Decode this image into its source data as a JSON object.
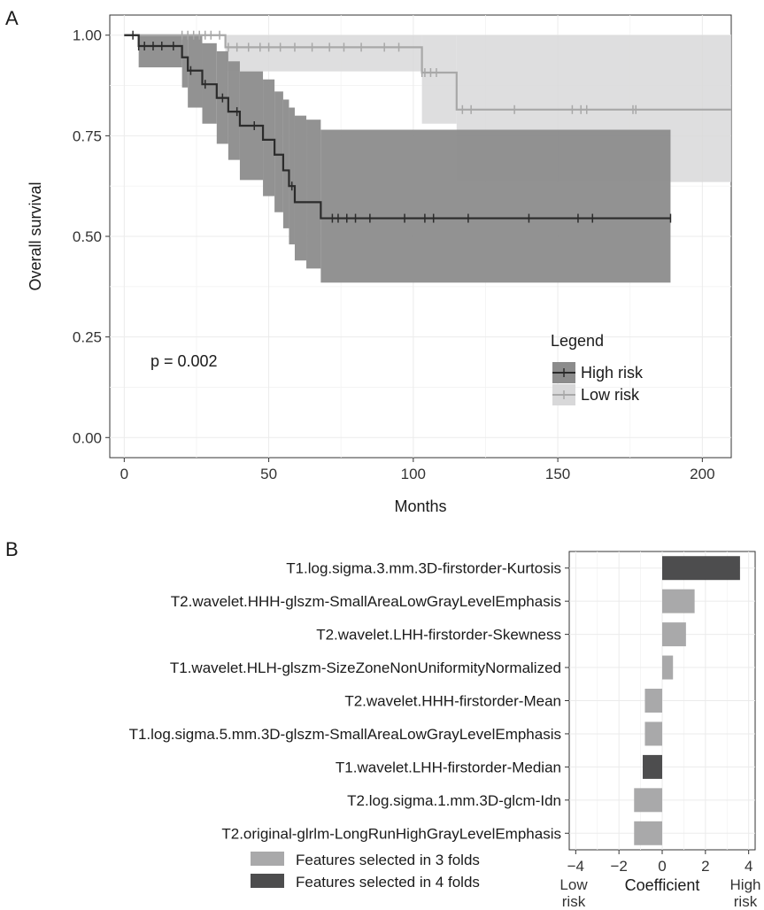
{
  "panels": [
    {
      "letter": "A"
    },
    {
      "letter": "B"
    }
  ],
  "colors": {
    "high_risk_line": "#2b2b2b",
    "high_risk_band": "#8c8c8c",
    "low_risk_line": "#a8a8a8",
    "low_risk_band": "#d8d8d9",
    "bar_3_folds": "#a9a9aa",
    "bar_4_folds": "#4d4d4e",
    "grid": "#ebebeb"
  },
  "chart_data": [
    {
      "type": "line",
      "subtype": "kaplan-meier step curve with confidence bands and censor marks",
      "xlabel": "Months",
      "ylabel": "Overall survival",
      "xlim": [
        -5,
        210
      ],
      "ylim": [
        -0.05,
        1.05
      ],
      "x_ticks": [
        0,
        50,
        100,
        150,
        200
      ],
      "y_ticks": [
        0.0,
        0.25,
        0.5,
        0.75,
        1.0
      ],
      "x_tick_labels": [
        "0",
        "50",
        "100",
        "150",
        "200"
      ],
      "y_tick_labels": [
        "0.00",
        "0.25",
        "0.50",
        "0.75",
        "1.00"
      ],
      "grid": true,
      "annotation": "p = 0.002",
      "legend": {
        "title": "Legend",
        "placement": "bottom-right",
        "entries": [
          "High risk",
          "Low risk"
        ]
      },
      "series": [
        {
          "name": "High risk",
          "step_times": [
            0,
            5,
            20,
            22,
            27,
            32,
            36,
            40,
            48,
            52,
            55,
            57,
            59,
            63,
            68,
            189
          ],
          "step_survival": [
            1.0,
            0.973,
            0.945,
            0.912,
            0.878,
            0.844,
            0.81,
            0.775,
            0.74,
            0.703,
            0.664,
            0.625,
            0.585,
            0.585,
            0.545,
            0.545
          ],
          "band_lower": [
            1.0,
            0.92,
            0.87,
            0.82,
            0.78,
            0.73,
            0.69,
            0.64,
            0.6,
            0.56,
            0.52,
            0.48,
            0.44,
            0.42,
            0.385,
            0.385
          ],
          "band_upper": [
            1.0,
            1.0,
            1.0,
            1.0,
            0.98,
            0.96,
            0.935,
            0.91,
            0.89,
            0.86,
            0.84,
            0.82,
            0.8,
            0.79,
            0.765,
            0.765
          ],
          "censor_times": [
            3,
            5,
            7,
            10,
            13,
            17,
            23,
            28,
            34,
            39,
            45,
            58,
            72,
            74,
            77,
            80,
            85,
            97,
            104,
            107,
            119,
            140,
            157,
            162,
            189
          ]
        },
        {
          "name": "Low risk",
          "step_times": [
            0,
            35,
            103,
            115,
            210
          ],
          "step_survival": [
            1.0,
            0.97,
            0.907,
            0.815,
            0.815
          ],
          "band_lower": [
            1.0,
            0.91,
            0.78,
            0.635,
            0.635
          ],
          "band_upper": [
            1.0,
            1.0,
            1.0,
            1.0,
            1.0
          ],
          "censor_times": [
            20,
            22,
            24,
            26,
            28,
            30,
            33,
            36,
            39,
            43,
            47,
            50,
            54,
            59,
            65,
            71,
            76,
            82,
            90,
            95,
            103,
            104,
            106,
            108,
            117,
            120,
            135,
            155,
            158,
            160,
            176,
            177
          ]
        }
      ]
    },
    {
      "type": "bar",
      "orientation": "horizontal",
      "xlabel": "Coefficient",
      "x_ticks": [
        -4,
        -2,
        0,
        2,
        4
      ],
      "x_tick_labels": [
        "−4",
        "−2",
        "0",
        "2",
        "4"
      ],
      "xlim": [
        -4.3,
        4.3
      ],
      "end_labels": {
        "low": [
          "Low",
          "risk"
        ],
        "high": [
          "High",
          "risk"
        ]
      },
      "grid": true,
      "legend": {
        "placement": "bottom-left",
        "entries": [
          "Features selected in 3 folds",
          "Features selected in 4 folds"
        ]
      },
      "categories": [
        "T1.log.sigma.3.mm.3D-firstorder-Kurtosis",
        "T2.wavelet.HHH-glszm-SmallAreaLowGrayLevelEmphasis",
        "T2.wavelet.LHH-firstorder-Skewness",
        "T1.wavelet.HLH-glszm-SizeZoneNonUniformityNormalized",
        "T2.wavelet.HHH-firstorder-Mean",
        "T1.log.sigma.5.mm.3D-glszm-SmallAreaLowGrayLevelEmphasis",
        "T1.wavelet.LHH-firstorder-Median",
        "T2.log.sigma.1.mm.3D-glcm-Idn",
        "T2.original-glrlm-LongRunHighGrayLevelEmphasis"
      ],
      "values": [
        3.6,
        1.5,
        1.1,
        0.5,
        -0.8,
        -0.8,
        -0.9,
        -1.3,
        -1.3
      ],
      "folds": [
        4,
        3,
        3,
        3,
        3,
        3,
        4,
        3,
        3
      ]
    }
  ]
}
